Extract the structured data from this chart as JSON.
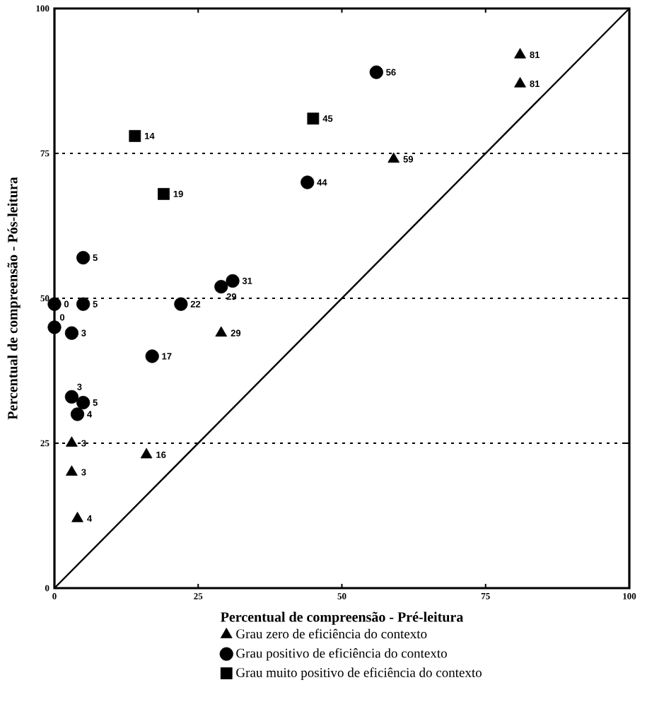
{
  "chart_data": {
    "type": "scatter",
    "xlabel": "Percentual de compreensão - Pré-leitura",
    "ylabel": "Percentual de compreensão - Pós-leitura",
    "xlim": [
      0,
      100
    ],
    "ylim": [
      0,
      100
    ],
    "xticks": [
      0,
      25,
      50,
      75,
      100
    ],
    "yticks": [
      0,
      25,
      50,
      75,
      100
    ],
    "grid": "y",
    "legend": "bottom",
    "series": [
      {
        "name": "Grau zero de eficiência do contexto",
        "color": "#000000",
        "marker": "triangle",
        "x": [
          81,
          81,
          59,
          29,
          16,
          3,
          3,
          4
        ],
        "values": [
          92,
          87,
          74,
          44,
          23,
          25,
          20,
          12
        ]
      },
      {
        "name": "Grau positivo de eficiência do contexto",
        "color": "#000000",
        "marker": "circle",
        "x": [
          56,
          44,
          31,
          29,
          22,
          17,
          5,
          5,
          0,
          0,
          3,
          3,
          5,
          4
        ],
        "values": [
          89,
          70,
          53,
          52,
          49,
          40,
          57,
          49,
          49,
          45,
          44,
          33,
          32,
          30
        ]
      },
      {
        "name": "Grau muito positivo de eficiência do contexto",
        "color": "#000000",
        "marker": "square",
        "x": [
          14,
          45,
          19
        ],
        "values": [
          78,
          81,
          68
        ]
      },
      {
        "type": "line",
        "color": "#000000",
        "marker": "none",
        "line_style": "solid",
        "x": [
          0,
          100
        ],
        "values": [
          0,
          100
        ]
      }
    ],
    "annotations": [
      {
        "text": "81",
        "x": 81,
        "y": 92
      },
      {
        "text": "81",
        "x": 81,
        "y": 87
      },
      {
        "text": "59",
        "x": 59,
        "y": 74
      },
      {
        "text": "29",
        "x": 29,
        "y": 44
      },
      {
        "text": "16",
        "x": 16,
        "y": 23
      },
      {
        "text": "3",
        "x": 3,
        "y": 25
      },
      {
        "text": "3",
        "x": 3,
        "y": 20
      },
      {
        "text": "4",
        "x": 4,
        "y": 12
      },
      {
        "text": "56",
        "x": 56,
        "y": 89
      },
      {
        "text": "44",
        "x": 44,
        "y": 70
      },
      {
        "text": "31",
        "x": 31,
        "y": 53
      },
      {
        "text": "29",
        "x": 29,
        "y": 52
      },
      {
        "text": "22",
        "x": 22,
        "y": 49
      },
      {
        "text": "17",
        "x": 17,
        "y": 40
      },
      {
        "text": "5",
        "x": 5,
        "y": 57
      },
      {
        "text": "5",
        "x": 5,
        "y": 49
      },
      {
        "text": "0",
        "x": 0,
        "y": 49
      },
      {
        "text": "0",
        "x": 0,
        "y": 45
      },
      {
        "text": "3",
        "x": 3,
        "y": 44
      },
      {
        "text": "3",
        "x": 3,
        "y": 33
      },
      {
        "text": "5",
        "x": 5,
        "y": 32
      },
      {
        "text": "4",
        "x": 4,
        "y": 30
      },
      {
        "text": "14",
        "x": 14,
        "y": 78
      },
      {
        "text": "45",
        "x": 45,
        "y": 81
      },
      {
        "text": "19",
        "x": 19,
        "y": 68
      }
    ]
  }
}
